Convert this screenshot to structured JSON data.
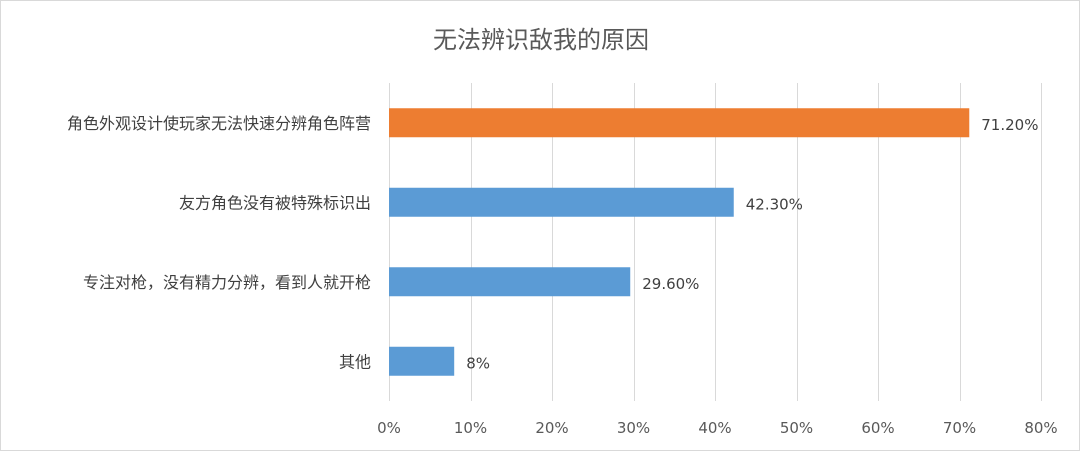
{
  "chart_data": {
    "type": "bar",
    "orientation": "horizontal",
    "title": "无法辨识敌我的原因",
    "categories": [
      "角色外观设计使玩家无法快速分辨角色阵营",
      "友方角色没有被特殊标识出",
      "专注对枪，没有精力分辨，看到人就开枪",
      "其他"
    ],
    "values": [
      71.2,
      42.3,
      29.6,
      8
    ],
    "data_labels": [
      "71.20%",
      "42.30%",
      "29.60%",
      "8%"
    ],
    "xlim": [
      0,
      80
    ],
    "x_ticks": [
      0,
      10,
      20,
      30,
      40,
      50,
      60,
      70,
      80
    ],
    "x_tick_labels": [
      "0%",
      "10%",
      "20%",
      "30%",
      "40%",
      "50%",
      "60%",
      "70%",
      "80%"
    ],
    "xlabel": "",
    "ylabel": "",
    "grid": "vertical",
    "legend": "none",
    "highlight_index": 0,
    "colors": {
      "bar": "#5b9bd5",
      "highlight": "#ed7d31"
    }
  }
}
